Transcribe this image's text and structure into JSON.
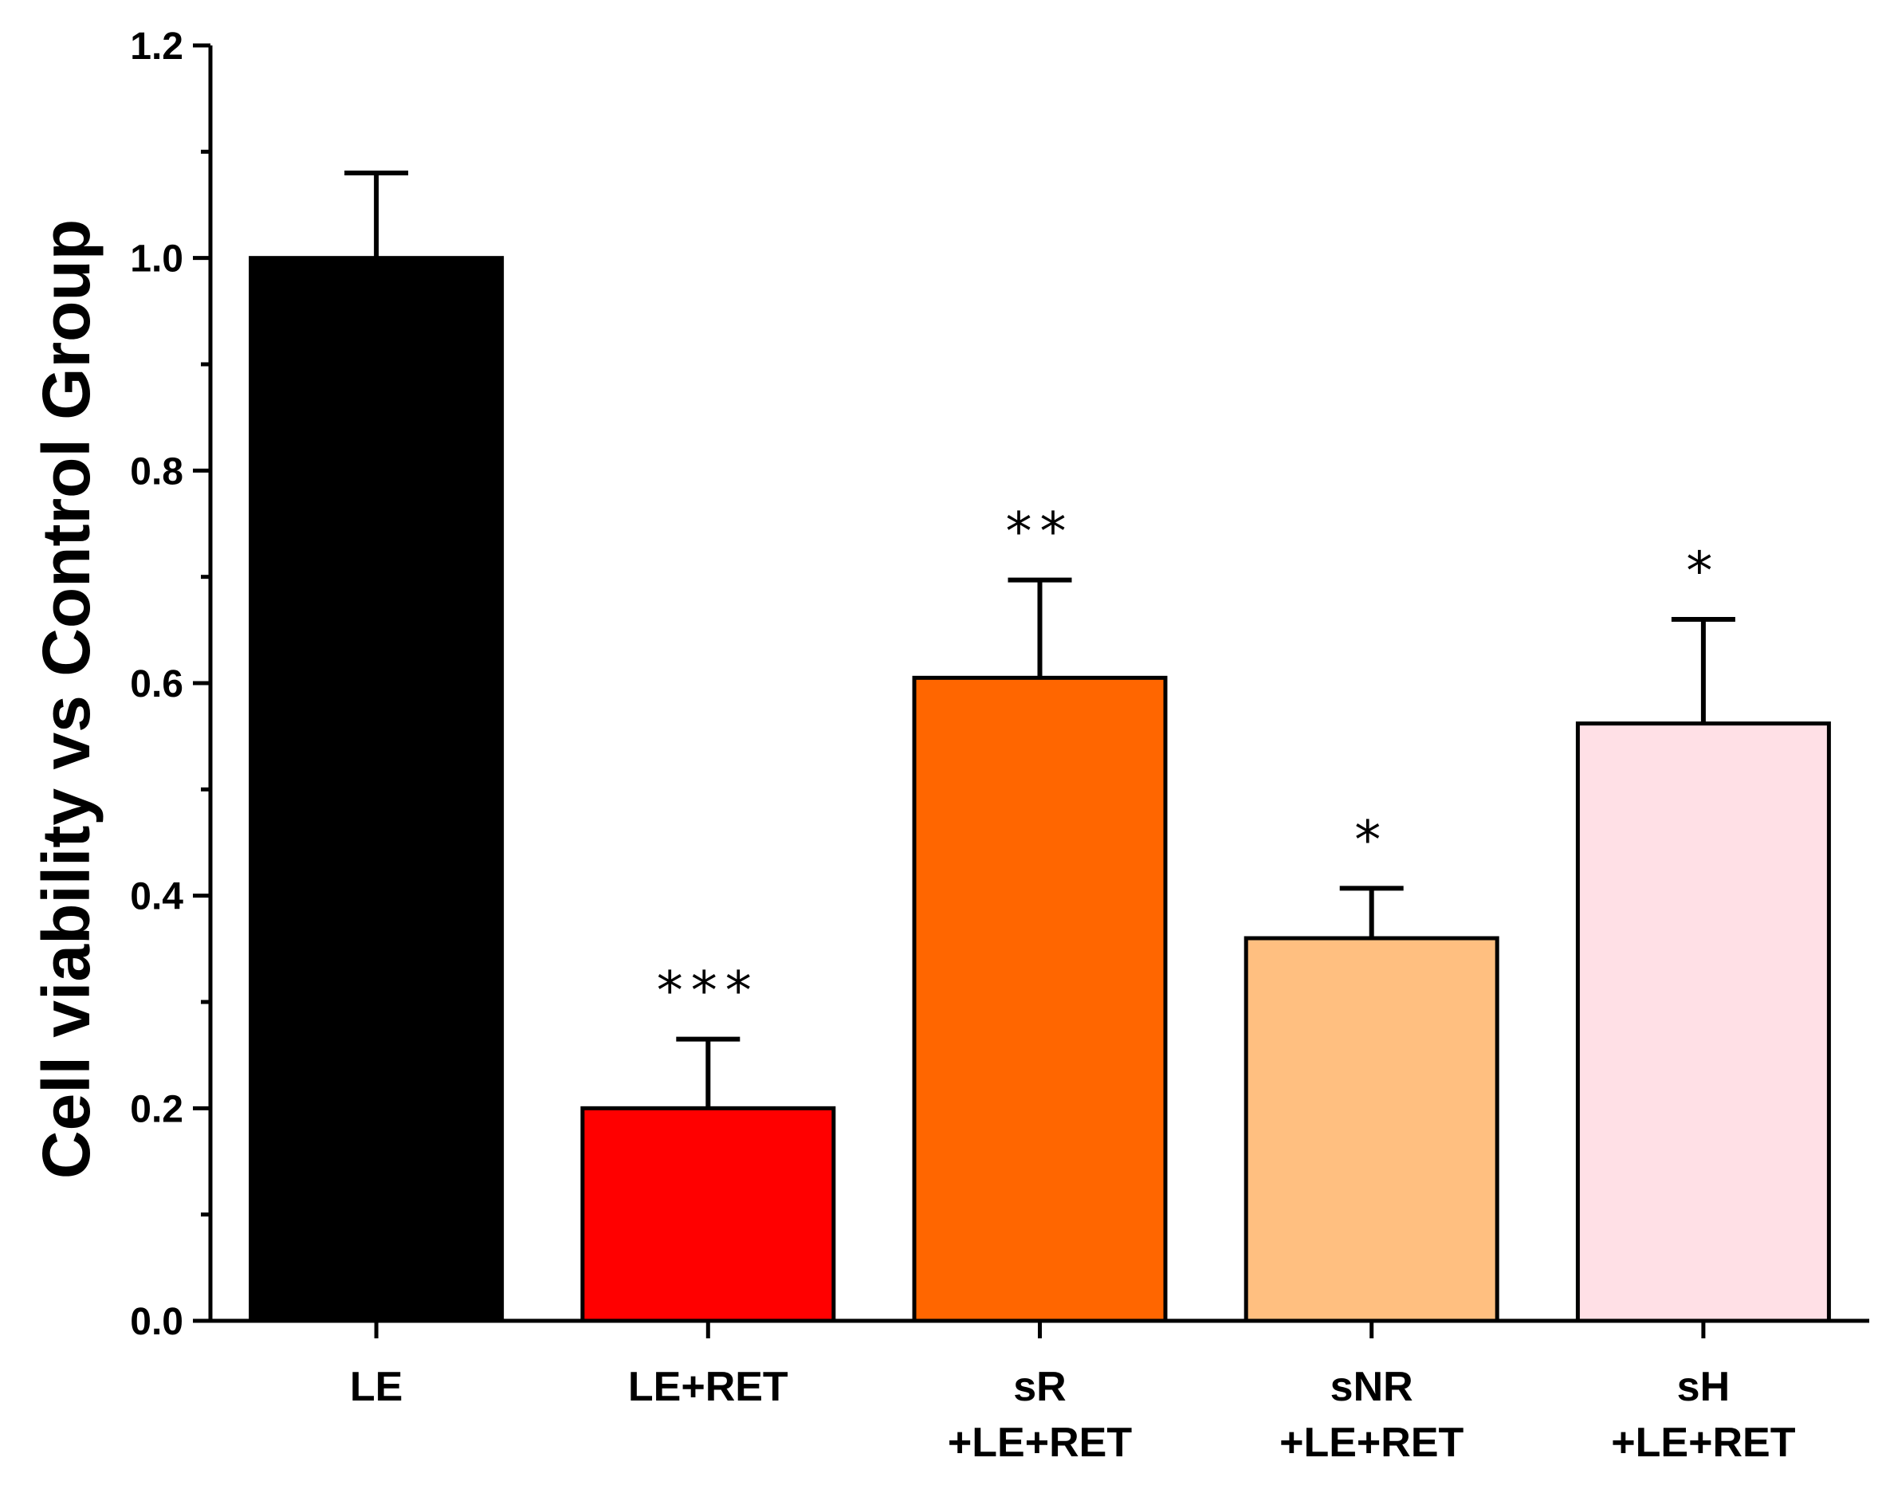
{
  "chart_data": {
    "type": "bar",
    "title": "",
    "xlabel": "",
    "ylabel": "Cell viability vs Control Group",
    "ylim": [
      0,
      1.2
    ],
    "yticks": [
      "0.0",
      "0.2",
      "0.4",
      "0.6",
      "0.8",
      "1.0",
      "1.2"
    ],
    "categories": [
      {
        "line1": "LE",
        "line2": ""
      },
      {
        "line1": "LE+RET",
        "line2": ""
      },
      {
        "line1": "sR",
        "line2": "+LE+RET"
      },
      {
        "line1": "sNR",
        "line2": "+LE+RET"
      },
      {
        "line1": "sH",
        "line2": "+LE+RET"
      }
    ],
    "values": [
      1.0,
      0.2,
      0.605,
      0.36,
      0.562
    ],
    "error_upper": [
      1.08,
      0.265,
      0.697,
      0.407,
      0.66
    ],
    "significance": [
      "",
      "***",
      "**",
      "*",
      "*"
    ],
    "colors": [
      "#000000",
      "#ff0000",
      "#ff6600",
      "#ffbf80",
      "#ffe0e6"
    ],
    "grid": false,
    "legend": "none"
  }
}
